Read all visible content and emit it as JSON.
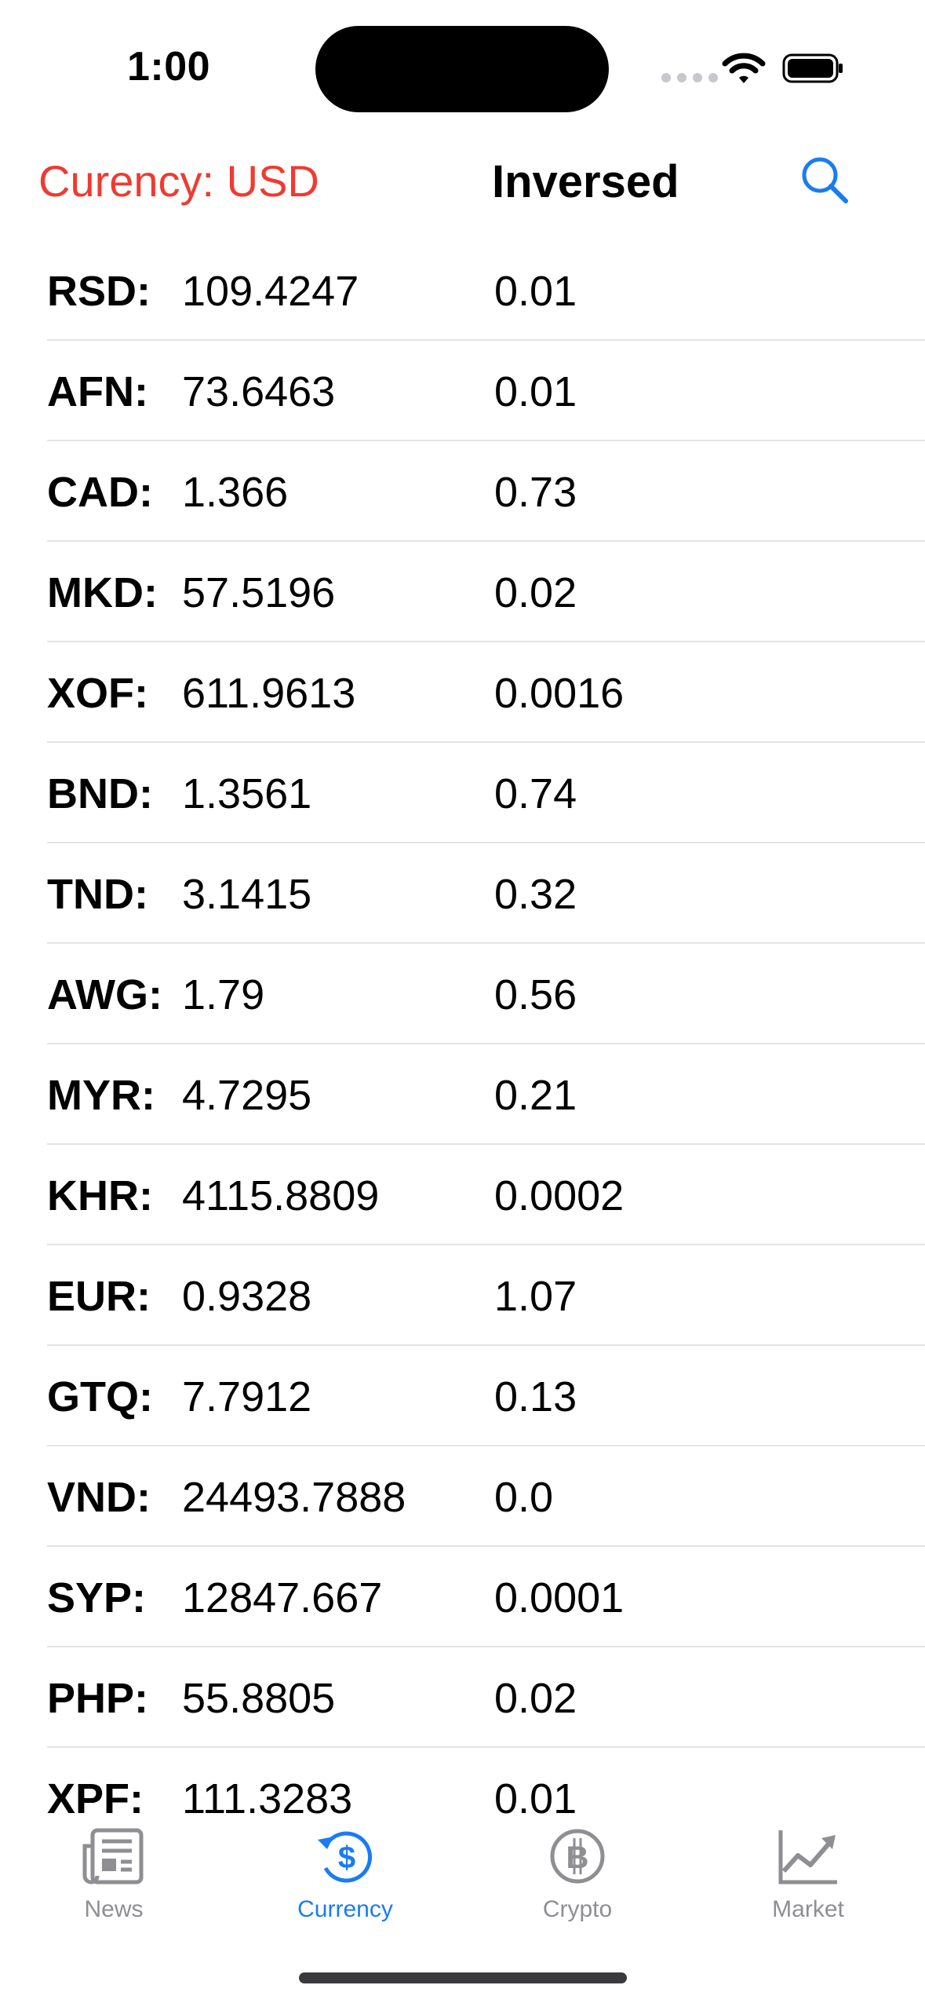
{
  "status_bar": {
    "time": "1:00"
  },
  "header": {
    "currency_label": "Curency: USD",
    "inversed_label": "Inversed",
    "accent_color": "#f03a30",
    "search_icon": "search-icon"
  },
  "rates": [
    {
      "code": "RSD:",
      "rate": "109.4247",
      "inversed": "0.01"
    },
    {
      "code": "AFN:",
      "rate": "73.6463",
      "inversed": "0.01"
    },
    {
      "code": "CAD:",
      "rate": "1.366",
      "inversed": "0.73"
    },
    {
      "code": "MKD:",
      "rate": "57.5196",
      "inversed": "0.02"
    },
    {
      "code": "XOF:",
      "rate": "611.9613",
      "inversed": "0.0016"
    },
    {
      "code": "BND:",
      "rate": "1.3561",
      "inversed": "0.74"
    },
    {
      "code": "TND:",
      "rate": "3.1415",
      "inversed": "0.32"
    },
    {
      "code": "AWG:",
      "rate": "1.79",
      "inversed": "0.56"
    },
    {
      "code": "MYR:",
      "rate": "4.7295",
      "inversed": "0.21"
    },
    {
      "code": "KHR:",
      "rate": "4115.8809",
      "inversed": "0.0002"
    },
    {
      "code": "EUR:",
      "rate": "0.9328",
      "inversed": "1.07"
    },
    {
      "code": "GTQ:",
      "rate": "7.7912",
      "inversed": "0.13"
    },
    {
      "code": "VND:",
      "rate": "24493.7888",
      "inversed": "0.0"
    },
    {
      "code": "SYP:",
      "rate": "12847.667",
      "inversed": "0.0001"
    },
    {
      "code": "PHP:",
      "rate": "55.8805",
      "inversed": "0.02"
    },
    {
      "code": "XPF:",
      "rate": "111.3283",
      "inversed": "0.01"
    }
  ],
  "tabs": [
    {
      "label": "News",
      "icon": "newspaper-icon",
      "active": false
    },
    {
      "label": "Currency",
      "icon": "currency-exchange-icon",
      "active": true
    },
    {
      "label": "Crypto",
      "icon": "bitcoin-icon",
      "active": false
    },
    {
      "label": "Market",
      "icon": "chart-trend-icon",
      "active": false
    }
  ],
  "colors": {
    "active_tab": "#1a7cf2",
    "inactive_tab": "#8e8e93"
  }
}
